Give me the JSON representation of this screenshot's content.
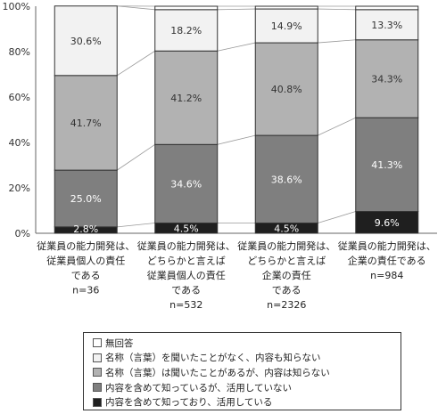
{
  "chart_data": {
    "type": "bar",
    "stacked": true,
    "percent": true,
    "categories": [
      [
        "従業員の能力開発は、",
        "従業員個人の責任",
        "である",
        "n=36"
      ],
      [
        "従業員の能力開発は、",
        "どちらかと言えば",
        "従業員個人の責任",
        "である",
        "n=532"
      ],
      [
        "従業員の能力開発は、",
        "どちらかと言えば",
        "企業の責任",
        "である",
        "n=2326"
      ],
      [
        "従業員の能力開発は、",
        "企業の責任である",
        "n=984"
      ]
    ],
    "series": [
      {
        "name": "内容を含めて知っており、活用している",
        "values": [
          2.8,
          4.5,
          4.5,
          9.6
        ],
        "labels": [
          "2.8%",
          "4.5%",
          "4.5%",
          "9.6%"
        ],
        "color": "#1f1f1f",
        "label_color": "#ffffff"
      },
      {
        "name": "内容を含めて知っているが、活用していない",
        "values": [
          25.0,
          34.6,
          38.6,
          41.3
        ],
        "labels": [
          "25.0%",
          "34.6%",
          "38.6%",
          "41.3%"
        ],
        "color": "#7f7f7f",
        "label_color": "#ffffff"
      },
      {
        "name": "名称（言葉）は聞いたことがあるが、内容は知らない",
        "values": [
          41.7,
          41.2,
          40.8,
          34.3
        ],
        "labels": [
          "41.7%",
          "41.2%",
          "40.8%",
          "34.3%"
        ],
        "color": "#b2b2b2",
        "label_color": "#333333"
      },
      {
        "name": "名称（言葉）を聞いたことがなく、内容も知らない",
        "values": [
          30.6,
          18.2,
          14.9,
          13.3
        ],
        "labels": [
          "30.6%",
          "18.2%",
          "14.9%",
          "13.3%"
        ],
        "color": "#f2f2f2",
        "label_color": "#333333"
      },
      {
        "name": "無回答",
        "values": [
          0.0,
          1.5,
          1.2,
          1.5
        ],
        "labels": [
          "",
          "",
          "",
          ""
        ],
        "color": "#ffffff",
        "label_color": "#333333"
      }
    ],
    "yticks": [
      "0%",
      "20%",
      "40%",
      "60%",
      "80%",
      "100%"
    ],
    "ylim": [
      0,
      100
    ],
    "legend_order": [
      4,
      3,
      2,
      1,
      0
    ],
    "legend_position": "bottom",
    "series_lines": true,
    "grid": false
  }
}
